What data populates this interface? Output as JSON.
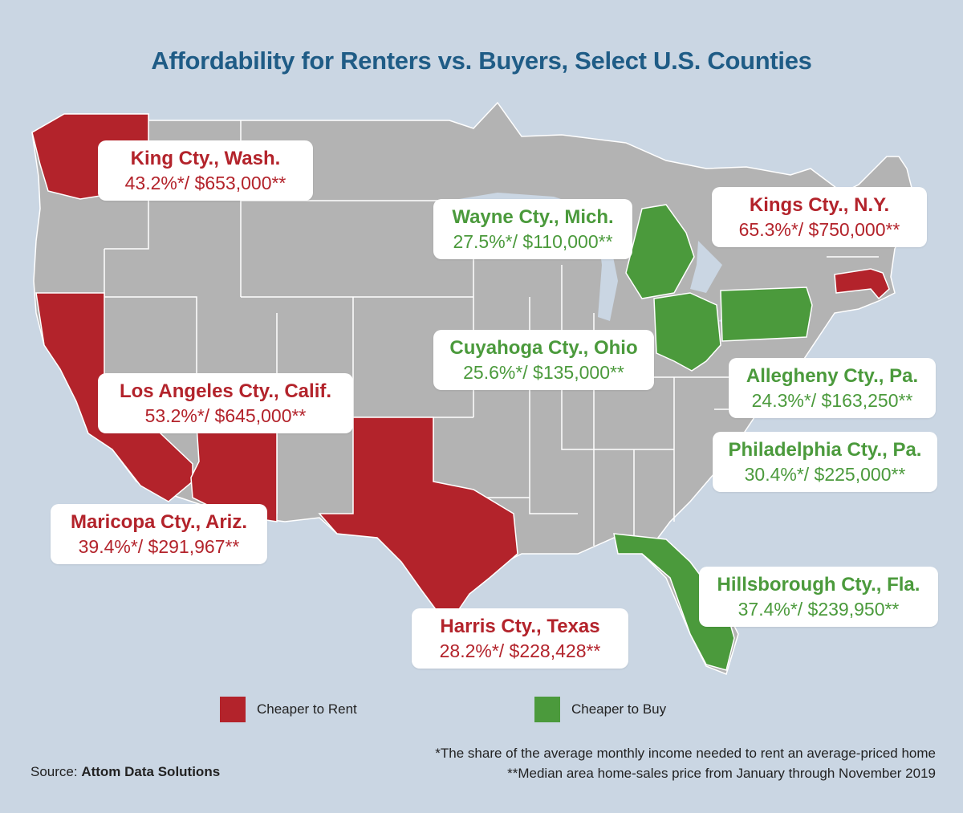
{
  "title": "Affordability for Renters vs. Buyers, Select U.S. Counties",
  "colors": {
    "background": "#cad6e3",
    "land": "#b3b3b3",
    "border": "#ffffff",
    "rent": "#b3232b",
    "buy": "#4b9a3c",
    "title": "#1f5c86"
  },
  "callouts": [
    {
      "id": "king",
      "category": "rent",
      "name": "King Cty., Wash.",
      "stat": "43.2%*/ $653,000**"
    },
    {
      "id": "wayne",
      "category": "buy",
      "name": "Wayne Cty., Mich.",
      "stat": "27.5%*/ $110,000**"
    },
    {
      "id": "kings",
      "category": "rent",
      "name": "Kings Cty., N.Y.",
      "stat": "65.3%*/ $750,000**"
    },
    {
      "id": "cuyahoga",
      "category": "buy",
      "name": "Cuyahoga Cty., Ohio",
      "stat": "25.6%*/ $135,000**"
    },
    {
      "id": "allegheny",
      "category": "buy",
      "name": "Allegheny Cty., Pa.",
      "stat": "24.3%*/ $163,250**"
    },
    {
      "id": "losangeles",
      "category": "rent",
      "name": "Los Angeles Cty., Calif.",
      "stat": "53.2%*/ $645,000**"
    },
    {
      "id": "philadelphia",
      "category": "buy",
      "name": "Philadelphia Cty., Pa.",
      "stat": "30.4%*/ $225,000**"
    },
    {
      "id": "maricopa",
      "category": "rent",
      "name": "Maricopa Cty., Ariz.",
      "stat": "39.4%*/ $291,967**"
    },
    {
      "id": "hillsborough",
      "category": "buy",
      "name": "Hillsborough Cty., Fla.",
      "stat": "37.4%*/ $239,950**"
    },
    {
      "id": "harris",
      "category": "rent",
      "name": "Harris Cty., Texas",
      "stat": "28.2%*/ $228,428**"
    }
  ],
  "legend": {
    "rent_label": "Cheaper to Rent",
    "buy_label": "Cheaper to Buy"
  },
  "source": {
    "prefix": "Source:",
    "name": "Attom Data Solutions"
  },
  "notes": {
    "note1": "*The share of the average monthly income needed to rent an average-priced home",
    "note2": "**Median area home-sales price from January through November 2019"
  }
}
